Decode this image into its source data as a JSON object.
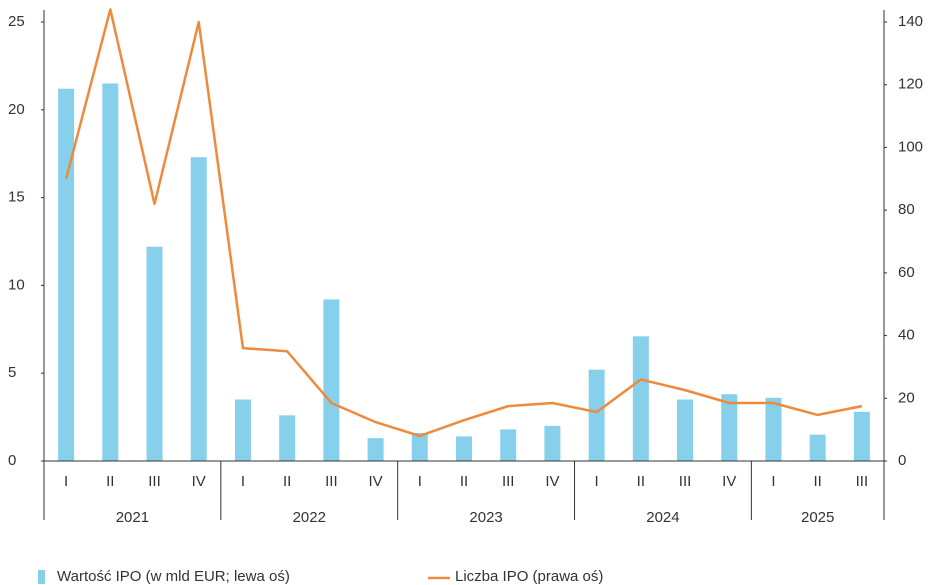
{
  "chart_data": {
    "type": "bar-line",
    "groups": [
      {
        "name": "2021",
        "categories": [
          "I",
          "II",
          "III",
          "IV"
        ]
      },
      {
        "name": "2022",
        "categories": [
          "I",
          "II",
          "III",
          "IV"
        ]
      },
      {
        "name": "2023",
        "categories": [
          "I",
          "II",
          "III",
          "IV"
        ]
      },
      {
        "name": "2024",
        "categories": [
          "I",
          "II",
          "III",
          "IV"
        ]
      },
      {
        "name": "2025",
        "categories": [
          "I",
          "II",
          "III"
        ]
      }
    ],
    "series": [
      {
        "name": "Wartość IPO (w mld EUR; lewa oś)",
        "type": "bar",
        "color": "#86d0ec",
        "values": [
          21.2,
          21.5,
          12.2,
          17.3,
          3.5,
          2.6,
          9.2,
          1.3,
          1.6,
          1.4,
          1.8,
          2.0,
          5.2,
          7.1,
          3.5,
          3.8,
          3.6,
          1.5,
          2.8
        ]
      },
      {
        "name": "Liczba IPO (prawa oś)",
        "type": "line",
        "axis": "y2",
        "color": "#ef8a3c",
        "values": [
          90,
          144,
          82,
          140,
          36,
          35,
          18.5,
          12.4,
          8,
          13,
          17.5,
          18.5,
          15.6,
          26,
          22.6,
          18.5,
          18.5,
          14.7,
          17.5
        ]
      }
    ],
    "ylim": [
      0,
      25
    ],
    "yticks": [
      0,
      5,
      10,
      15,
      20,
      25
    ],
    "y2lim": [
      0,
      140
    ],
    "y2ticks": [
      0,
      20,
      40,
      60,
      80,
      100,
      120,
      140
    ]
  }
}
